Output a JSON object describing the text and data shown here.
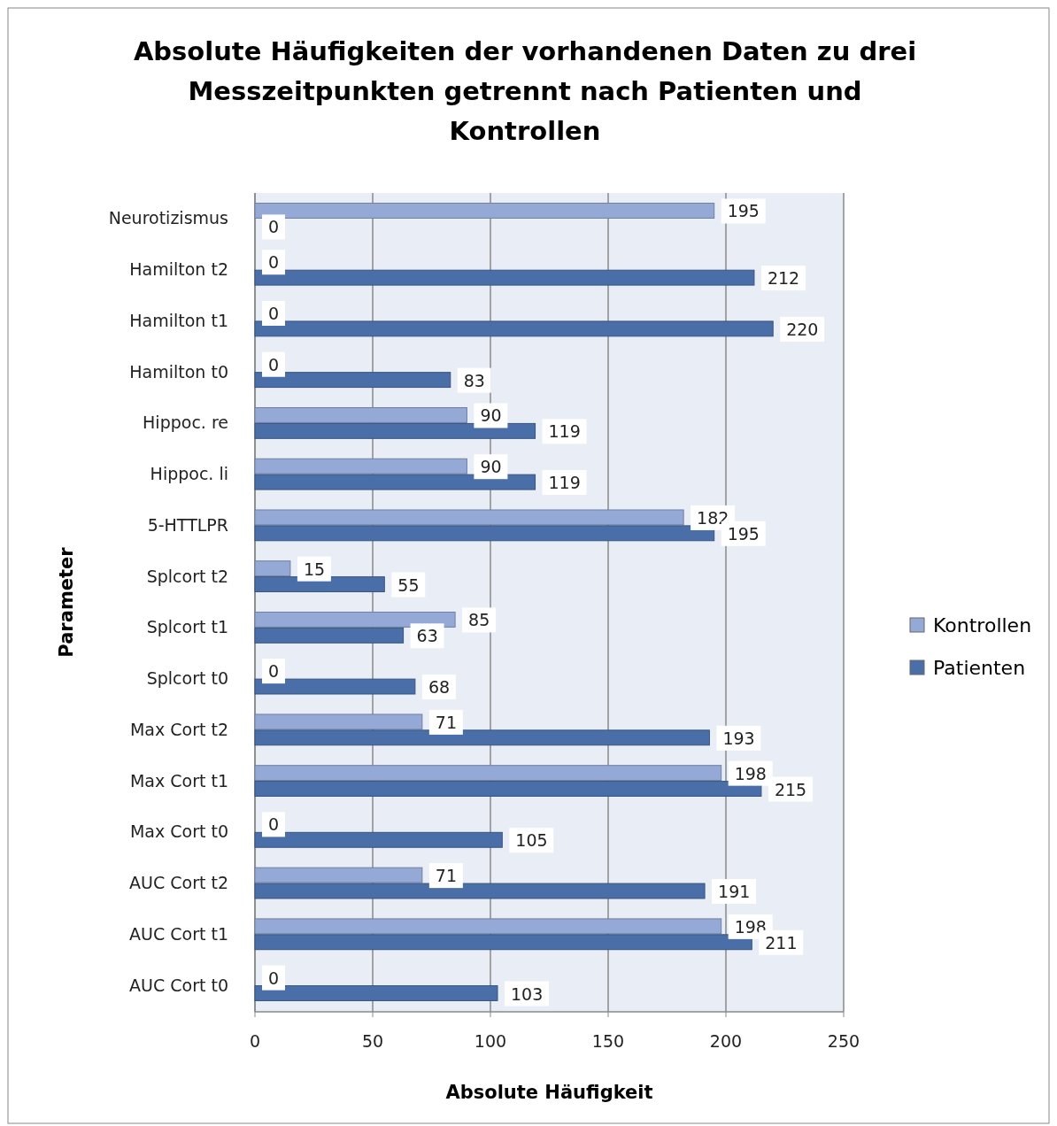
{
  "chart_data": {
    "type": "bar",
    "orientation": "horizontal",
    "title": "Absolute Häufigkeiten der vorhandenen Daten zu drei Messzeitpunkten getrennt nach Patienten und Kontrollen",
    "xlabel": "Absolute Häufigkeit",
    "ylabel": "Parameter",
    "categories": [
      "Neurotizismus",
      "Hamilton t2",
      "Hamilton t1",
      "Hamilton t0",
      "Hippoc. re",
      "Hippoc. li",
      "5-HTTLPR",
      "Splcort t2",
      "Splcort t1",
      "Splcort t0",
      "Max Cort t2",
      "Max Cort t1",
      "Max Cort t0",
      "AUC Cort t2",
      "AUC Cort t1",
      "AUC Cort t0"
    ],
    "series": [
      {
        "name": "Kontrollen",
        "color": "#95a9d6",
        "values": [
          195,
          0,
          0,
          0,
          90,
          90,
          182,
          15,
          85,
          0,
          71,
          198,
          0,
          71,
          198,
          0
        ]
      },
      {
        "name": "Patienten",
        "color": "#4a6fa8",
        "values": [
          0,
          212,
          220,
          83,
          119,
          119,
          195,
          55,
          63,
          68,
          193,
          215,
          105,
          191,
          211,
          103
        ]
      }
    ],
    "xlim": [
      0,
      250
    ],
    "xticks": [
      0,
      50,
      100,
      150,
      200,
      250
    ],
    "grid": "x",
    "legend": "right",
    "data_labels": true
  }
}
